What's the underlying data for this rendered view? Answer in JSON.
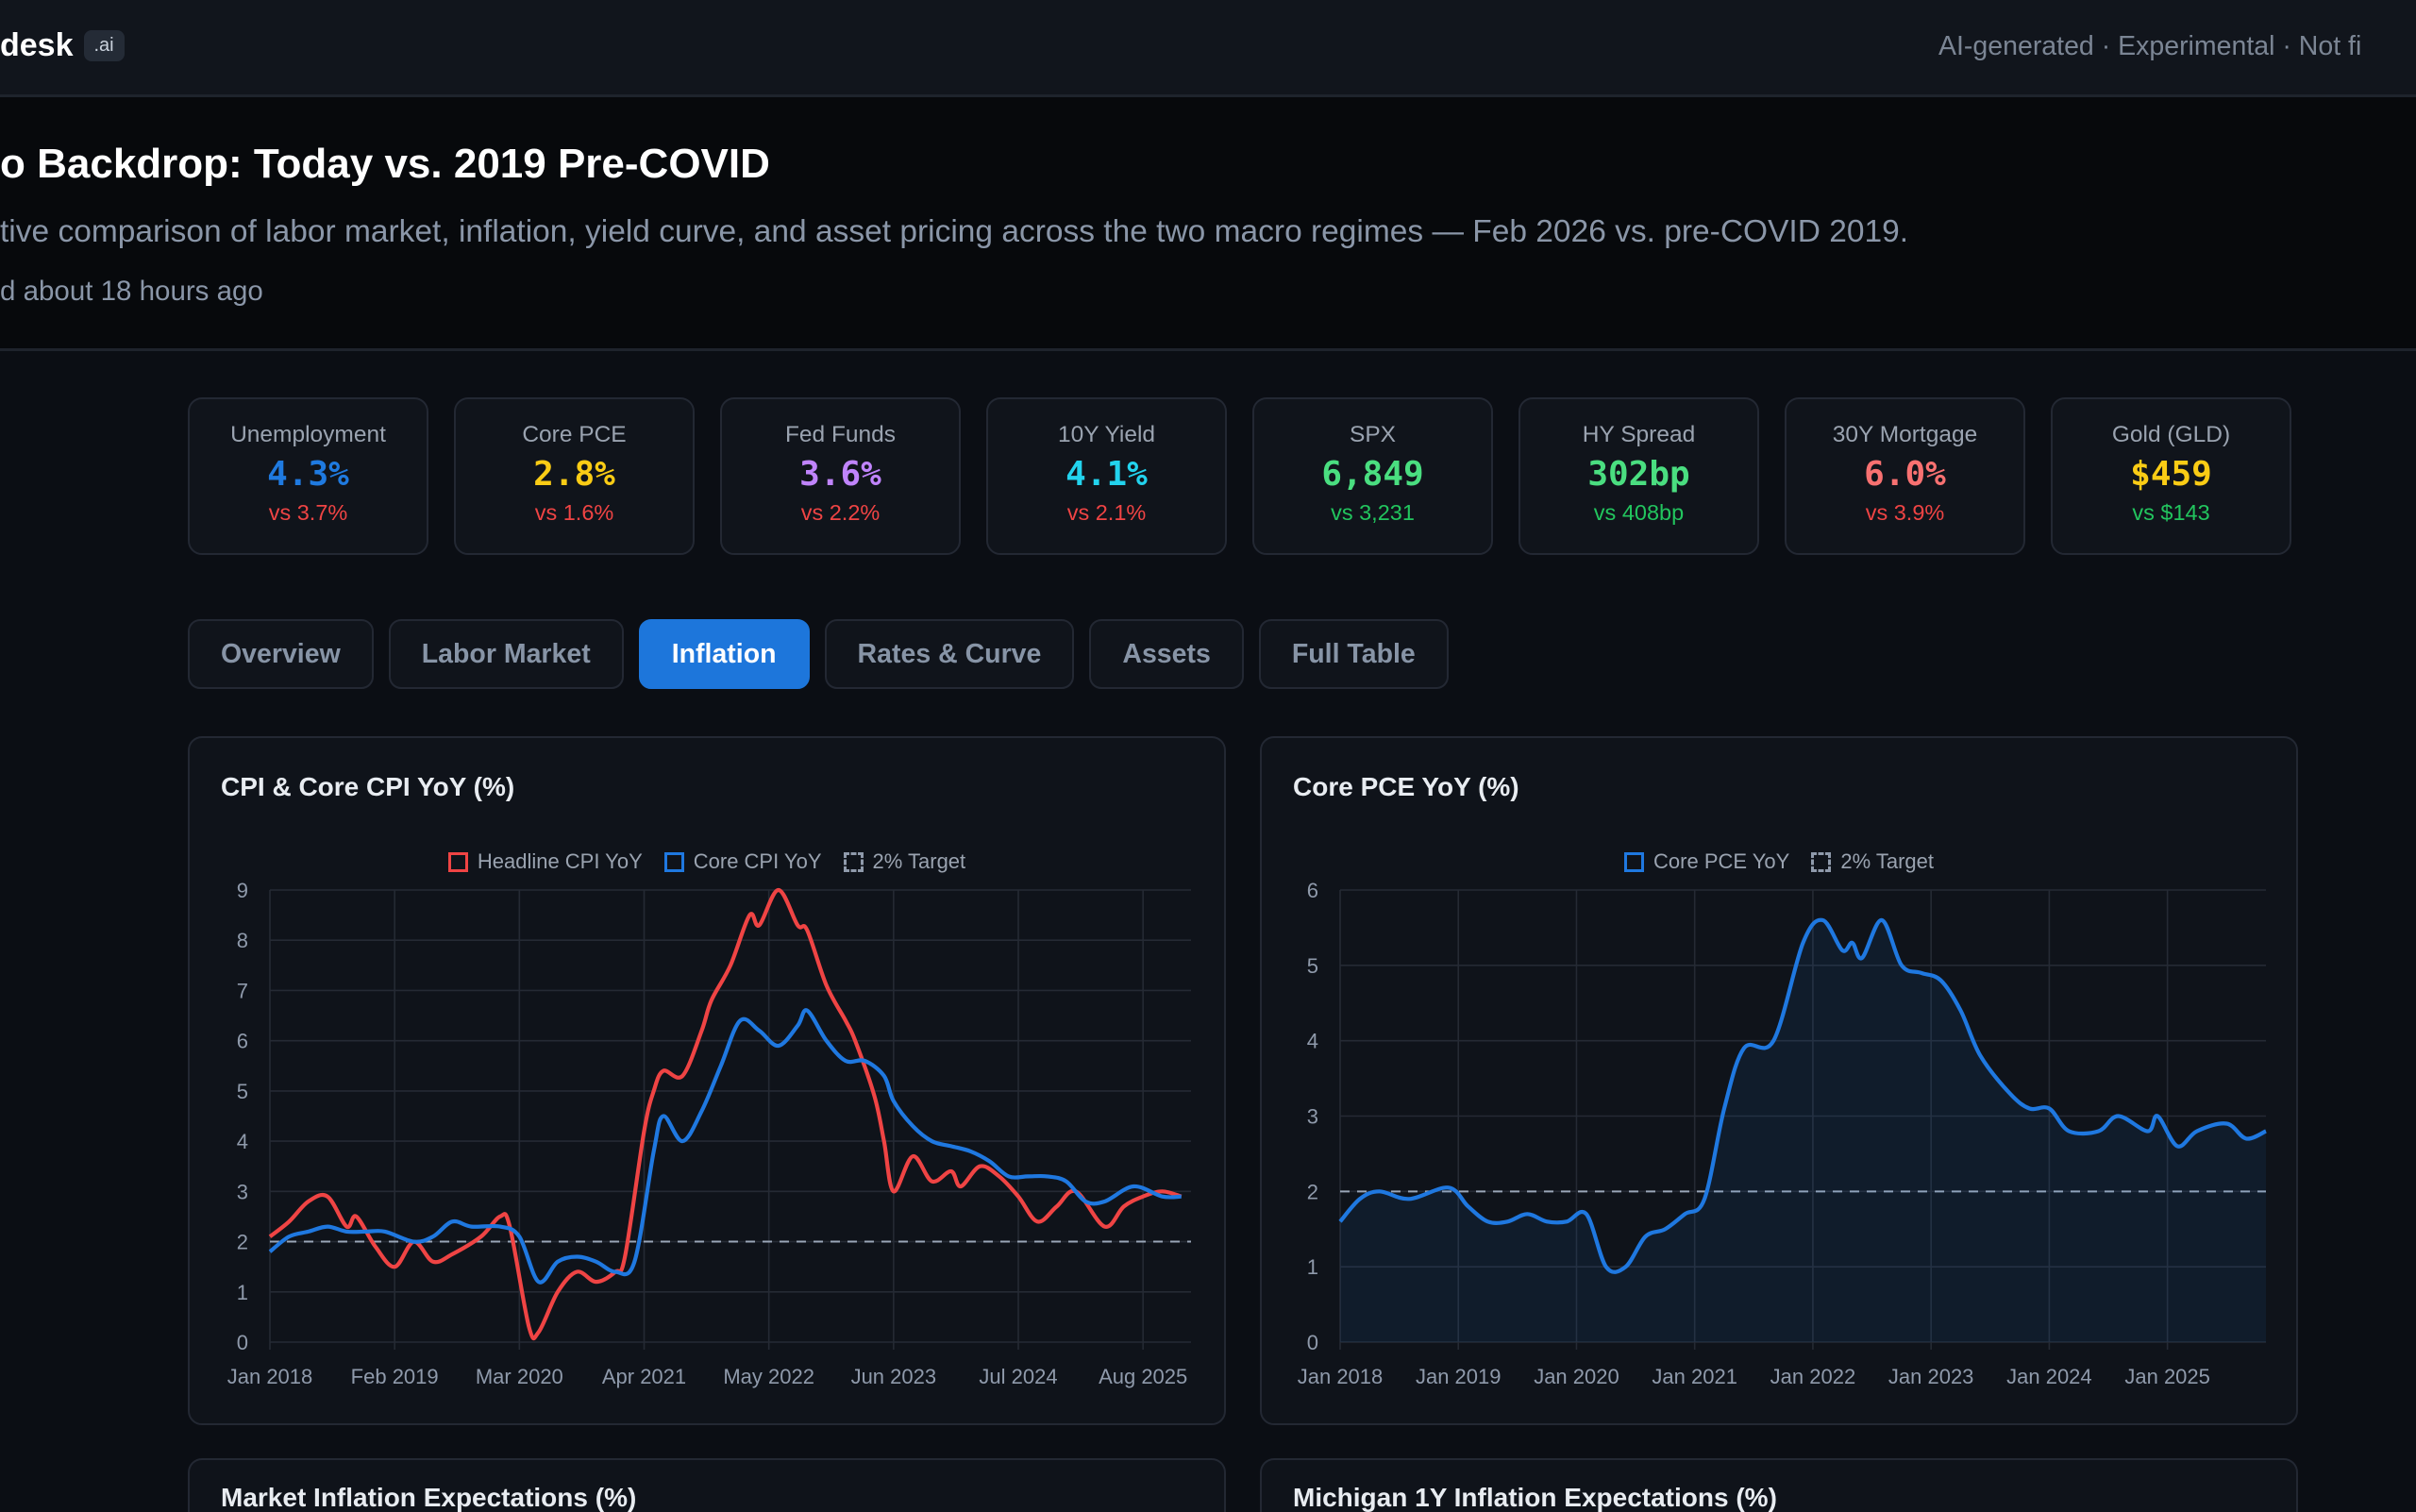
{
  "topbar": {
    "brand": "desk",
    "brand_badge": ".ai",
    "disclaimer": "AI-generated · Experimental · Not fi"
  },
  "hero": {
    "title": "o Backdrop: Today vs. 2019 Pre-COVID",
    "subtitle": "tive comparison of labor market, inflation, yield curve, and asset pricing across the two macro regimes — Feb 2026 vs. pre-COVID 2019.",
    "updated": "d about 18 hours ago"
  },
  "kpis": [
    {
      "label": "Unemployment",
      "value": "4.3%",
      "vs": "vs 3.7%",
      "value_color": "#1f7ae0",
      "vs_color": "#ef4444"
    },
    {
      "label": "Core PCE",
      "value": "2.8%",
      "vs": "vs 1.6%",
      "value_color": "#facc15",
      "vs_color": "#ef4444"
    },
    {
      "label": "Fed Funds",
      "value": "3.6%",
      "vs": "vs 2.2%",
      "value_color": "#c084fc",
      "vs_color": "#ef4444"
    },
    {
      "label": "10Y Yield",
      "value": "4.1%",
      "vs": "vs 2.1%",
      "value_color": "#22d3ee",
      "vs_color": "#ef4444"
    },
    {
      "label": "SPX",
      "value": "6,849",
      "vs": "vs 3,231",
      "value_color": "#4ade80",
      "vs_color": "#22c55e"
    },
    {
      "label": "HY Spread",
      "value": "302bp",
      "vs": "vs 408bp",
      "value_color": "#4ade80",
      "vs_color": "#22c55e"
    },
    {
      "label": "30Y Mortgage",
      "value": "6.0%",
      "vs": "vs 3.9%",
      "value_color": "#f87171",
      "vs_color": "#ef4444"
    },
    {
      "label": "Gold (GLD)",
      "value": "$459",
      "vs": "vs $143",
      "value_color": "#facc15",
      "vs_color": "#22c55e"
    }
  ],
  "tabs": [
    {
      "label": "Overview",
      "active": false
    },
    {
      "label": "Labor Market",
      "active": false
    },
    {
      "label": "Inflation",
      "active": true
    },
    {
      "label": "Rates & Curve",
      "active": false
    },
    {
      "label": "Assets",
      "active": false
    },
    {
      "label": "Full Table",
      "active": false
    }
  ],
  "bottom_cards": {
    "left_title": "Market Inflation Expectations (%)",
    "right_title": "Michigan 1Y Inflation Expectations (%)"
  },
  "chart_data": [
    {
      "type": "line",
      "title": "CPI & Core CPI YoY (%)",
      "x_range": [
        "2018-01",
        "2026-01"
      ],
      "ylim": [
        0,
        9
      ],
      "yticks": [
        0,
        1,
        2,
        3,
        4,
        5,
        6,
        7,
        8,
        9
      ],
      "xticks": [
        "Jan 2018",
        "Feb 2019",
        "Mar 2020",
        "Apr 2021",
        "May 2022",
        "Jun 2023",
        "Jul 2024",
        "Aug 2025"
      ],
      "grid": true,
      "legend": "top-center",
      "reference_line": {
        "name": "2% Target",
        "value": 2,
        "color": "#9aa6b8"
      },
      "series": [
        {
          "name": "Headline CPI YoY",
          "color": "#ef4444",
          "points": [
            [
              "2018-01",
              2.1
            ],
            [
              "2018-03",
              2.4
            ],
            [
              "2018-05",
              2.8
            ],
            [
              "2018-07",
              2.9
            ],
            [
              "2018-09",
              2.3
            ],
            [
              "2018-10",
              2.5
            ],
            [
              "2018-12",
              1.9
            ],
            [
              "2019-02",
              1.5
            ],
            [
              "2019-04",
              2.0
            ],
            [
              "2019-06",
              1.6
            ],
            [
              "2019-08",
              1.75
            ],
            [
              "2019-11",
              2.1
            ],
            [
              "2020-01",
              2.5
            ],
            [
              "2020-02",
              2.3
            ],
            [
              "2020-04",
              0.3
            ],
            [
              "2020-05",
              0.2
            ],
            [
              "2020-07",
              1.0
            ],
            [
              "2020-09",
              1.4
            ],
            [
              "2020-11",
              1.2
            ],
            [
              "2021-01",
              1.4
            ],
            [
              "2021-02",
              1.7
            ],
            [
              "2021-04",
              4.2
            ],
            [
              "2021-05",
              5.0
            ],
            [
              "2021-06",
              5.4
            ],
            [
              "2021-08",
              5.3
            ],
            [
              "2021-10",
              6.2
            ],
            [
              "2021-11",
              6.8
            ],
            [
              "2022-01",
              7.5
            ],
            [
              "2022-03",
              8.5
            ],
            [
              "2022-04",
              8.3
            ],
            [
              "2022-06",
              9.0
            ],
            [
              "2022-08",
              8.3
            ],
            [
              "2022-09",
              8.2
            ],
            [
              "2022-11",
              7.1
            ],
            [
              "2023-01",
              6.4
            ],
            [
              "2023-02",
              6.0
            ],
            [
              "2023-04",
              4.9
            ],
            [
              "2023-05",
              4.0
            ],
            [
              "2023-06",
              3.0
            ],
            [
              "2023-08",
              3.7
            ],
            [
              "2023-10",
              3.2
            ],
            [
              "2023-12",
              3.4
            ],
            [
              "2024-01",
              3.1
            ],
            [
              "2024-03",
              3.5
            ],
            [
              "2024-05",
              3.3
            ],
            [
              "2024-07",
              2.9
            ],
            [
              "2024-09",
              2.4
            ],
            [
              "2024-11",
              2.7
            ],
            [
              "2025-01",
              3.0
            ],
            [
              "2025-04",
              2.3
            ],
            [
              "2025-06",
              2.7
            ],
            [
              "2025-08",
              2.9
            ],
            [
              "2025-10",
              3.0
            ],
            [
              "2025-12",
              2.9
            ]
          ]
        },
        {
          "name": "Core CPI YoY",
          "color": "#1f78e0",
          "points": [
            [
              "2018-01",
              1.8
            ],
            [
              "2018-03",
              2.1
            ],
            [
              "2018-05",
              2.2
            ],
            [
              "2018-07",
              2.3
            ],
            [
              "2018-09",
              2.2
            ],
            [
              "2018-11",
              2.2
            ],
            [
              "2019-01",
              2.2
            ],
            [
              "2019-04",
              2.0
            ],
            [
              "2019-06",
              2.1
            ],
            [
              "2019-08",
              2.4
            ],
            [
              "2019-10",
              2.3
            ],
            [
              "2020-01",
              2.3
            ],
            [
              "2020-03",
              2.1
            ],
            [
              "2020-05",
              1.2
            ],
            [
              "2020-07",
              1.6
            ],
            [
              "2020-09",
              1.7
            ],
            [
              "2020-11",
              1.6
            ],
            [
              "2021-01",
              1.4
            ],
            [
              "2021-03",
              1.6
            ],
            [
              "2021-05",
              3.8
            ],
            [
              "2021-06",
              4.5
            ],
            [
              "2021-08",
              4.0
            ],
            [
              "2021-10",
              4.6
            ],
            [
              "2021-12",
              5.5
            ],
            [
              "2022-02",
              6.4
            ],
            [
              "2022-04",
              6.2
            ],
            [
              "2022-06",
              5.9
            ],
            [
              "2022-08",
              6.3
            ],
            [
              "2022-09",
              6.6
            ],
            [
              "2022-11",
              6.0
            ],
            [
              "2023-01",
              5.6
            ],
            [
              "2023-03",
              5.6
            ],
            [
              "2023-05",
              5.3
            ],
            [
              "2023-06",
              4.8
            ],
            [
              "2023-08",
              4.3
            ],
            [
              "2023-10",
              4.0
            ],
            [
              "2023-12",
              3.9
            ],
            [
              "2024-02",
              3.8
            ],
            [
              "2024-04",
              3.6
            ],
            [
              "2024-06",
              3.3
            ],
            [
              "2024-08",
              3.3
            ],
            [
              "2024-10",
              3.3
            ],
            [
              "2024-12",
              3.2
            ],
            [
              "2025-02",
              2.8
            ],
            [
              "2025-04",
              2.8
            ],
            [
              "2025-07",
              3.1
            ],
            [
              "2025-10",
              2.9
            ],
            [
              "2025-12",
              2.9
            ]
          ]
        }
      ]
    },
    {
      "type": "area",
      "title": "Core PCE YoY (%)",
      "x_range": [
        "2018-01",
        "2025-11"
      ],
      "ylim": [
        0,
        6
      ],
      "yticks": [
        0,
        1,
        2,
        3,
        4,
        5,
        6
      ],
      "xticks": [
        "Jan 2018",
        "Jan 2019",
        "Jan 2020",
        "Jan 2021",
        "Jan 2022",
        "Jan 2023",
        "Jan 2024",
        "Jan 2025"
      ],
      "grid": true,
      "legend": "top-center",
      "reference_line": {
        "name": "2% Target",
        "value": 2,
        "color": "#9aa6b8"
      },
      "series": [
        {
          "name": "Core PCE YoY",
          "color": "#1f78e0",
          "points": [
            [
              "2018-01",
              1.6
            ],
            [
              "2018-03",
              1.9
            ],
            [
              "2018-05",
              2.0
            ],
            [
              "2018-08",
              1.9
            ],
            [
              "2018-12",
              2.05
            ],
            [
              "2019-02",
              1.8
            ],
            [
              "2019-04",
              1.6
            ],
            [
              "2019-06",
              1.6
            ],
            [
              "2019-08",
              1.7
            ],
            [
              "2019-10",
              1.6
            ],
            [
              "2019-12",
              1.6
            ],
            [
              "2020-02",
              1.7
            ],
            [
              "2020-04",
              1.0
            ],
            [
              "2020-06",
              1.0
            ],
            [
              "2020-08",
              1.4
            ],
            [
              "2020-10",
              1.5
            ],
            [
              "2020-12",
              1.7
            ],
            [
              "2021-02",
              1.9
            ],
            [
              "2021-04",
              3.1
            ],
            [
              "2021-06",
              3.9
            ],
            [
              "2021-09",
              4.0
            ],
            [
              "2021-12",
              5.3
            ],
            [
              "2022-02",
              5.6
            ],
            [
              "2022-04",
              5.2
            ],
            [
              "2022-05",
              5.3
            ],
            [
              "2022-06",
              5.1
            ],
            [
              "2022-08",
              5.6
            ],
            [
              "2022-10",
              5.0
            ],
            [
              "2022-12",
              4.9
            ],
            [
              "2023-02",
              4.8
            ],
            [
              "2023-04",
              4.4
            ],
            [
              "2023-06",
              3.8
            ],
            [
              "2023-09",
              3.3
            ],
            [
              "2023-11",
              3.1
            ],
            [
              "2024-01",
              3.1
            ],
            [
              "2024-03",
              2.8
            ],
            [
              "2024-06",
              2.8
            ],
            [
              "2024-08",
              3.0
            ],
            [
              "2024-11",
              2.8
            ],
            [
              "2024-12",
              3.0
            ],
            [
              "2025-02",
              2.6
            ],
            [
              "2025-04",
              2.8
            ],
            [
              "2025-07",
              2.9
            ],
            [
              "2025-09",
              2.7
            ],
            [
              "2025-11",
              2.8
            ]
          ]
        }
      ]
    }
  ]
}
